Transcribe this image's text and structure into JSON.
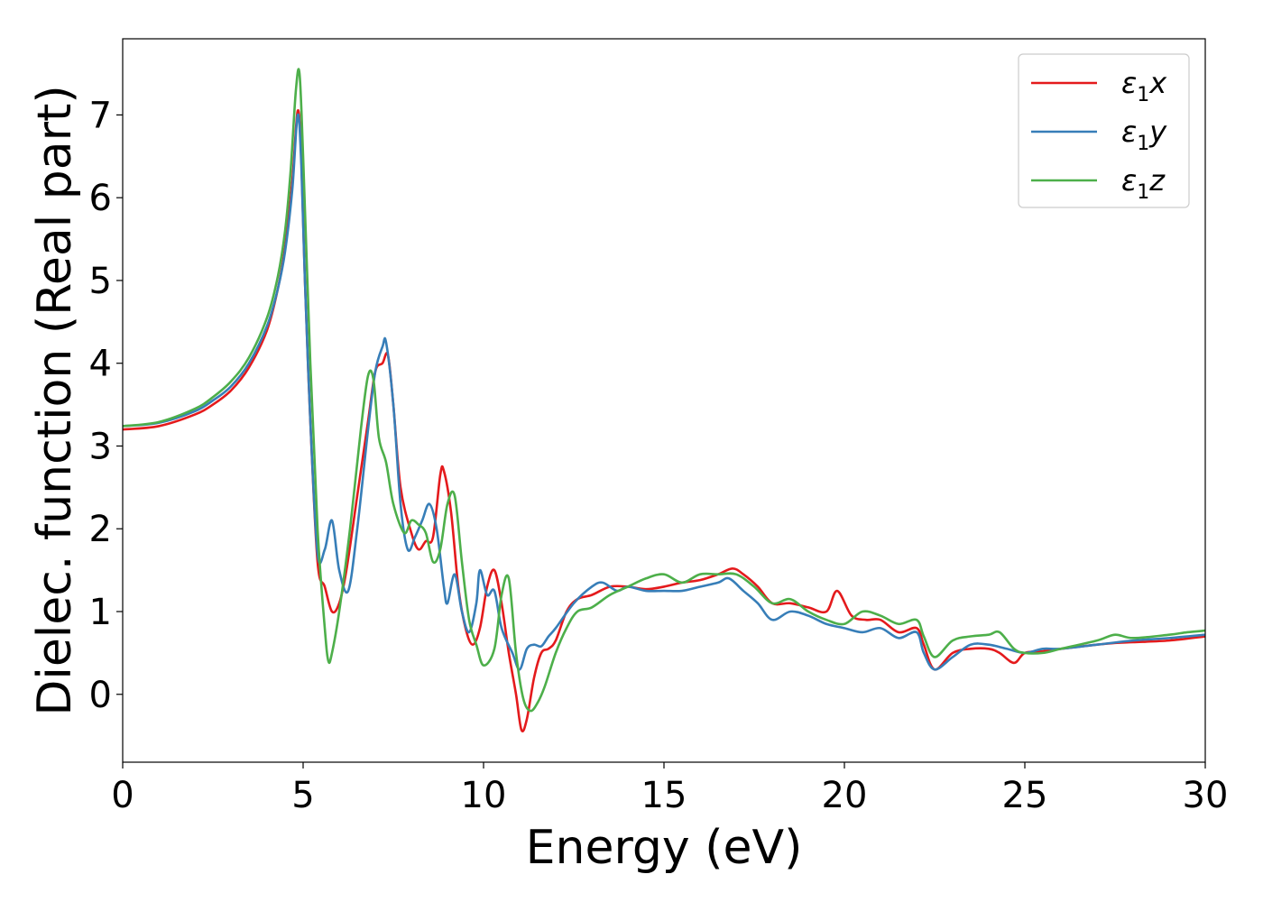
{
  "chart_data": {
    "type": "line",
    "xlabel": "Energy (eV)",
    "ylabel": "Dielec. function (Real part)",
    "xlim": [
      0,
      30
    ],
    "ylim": [
      -0.82,
      7.92
    ],
    "xticks": [
      0,
      5,
      10,
      15,
      20,
      25,
      30
    ],
    "yticks": [
      0,
      1,
      2,
      3,
      4,
      5,
      6,
      7
    ],
    "grid": false,
    "legend_position": "top-right",
    "series": [
      {
        "name": "ε₁x",
        "legend_main": "ε",
        "legend_sub": "1",
        "legend_suffix": "x",
        "color": "#e41a1c",
        "x": [
          0,
          1,
          2,
          2.5,
          3,
          3.5,
          4,
          4.3,
          4.5,
          4.7,
          4.85,
          4.95,
          5.05,
          5.2,
          5.4,
          5.6,
          5.8,
          6.0,
          6.2,
          6.5,
          6.8,
          7.0,
          7.2,
          7.35,
          7.5,
          7.7,
          8.0,
          8.2,
          8.4,
          8.6,
          8.8,
          8.9,
          9.1,
          9.3,
          9.5,
          9.7,
          9.9,
          10.1,
          10.3,
          10.5,
          10.7,
          10.9,
          11.05,
          11.2,
          11.4,
          11.6,
          11.8,
          12.0,
          12.3,
          12.6,
          13.0,
          13.5,
          14.0,
          14.5,
          15.0,
          15.5,
          16.0,
          16.5,
          16.9,
          17.2,
          17.6,
          18.0,
          18.5,
          19.0,
          19.5,
          19.8,
          20.2,
          20.6,
          21.0,
          21.5,
          22.0,
          22.2,
          22.5,
          23.0,
          23.5,
          24.0,
          24.3,
          24.7,
          25.0,
          25.5,
          26.0,
          27.0,
          27.5,
          28.0,
          29.0,
          30.0
        ],
        "y": [
          3.2,
          3.24,
          3.38,
          3.5,
          3.67,
          3.95,
          4.4,
          4.9,
          5.4,
          6.2,
          7.05,
          6.5,
          5.0,
          3.3,
          1.6,
          1.3,
          1.0,
          1.1,
          1.5,
          2.4,
          3.3,
          3.9,
          4.0,
          4.1,
          3.5,
          2.5,
          1.95,
          1.75,
          1.85,
          1.9,
          2.65,
          2.7,
          2.2,
          1.3,
          0.8,
          0.6,
          0.8,
          1.3,
          1.5,
          1.1,
          0.5,
          0.0,
          -0.43,
          -0.3,
          0.2,
          0.5,
          0.55,
          0.65,
          1.0,
          1.15,
          1.2,
          1.3,
          1.3,
          1.27,
          1.3,
          1.35,
          1.38,
          1.45,
          1.52,
          1.45,
          1.3,
          1.1,
          1.1,
          1.05,
          1.0,
          1.25,
          0.95,
          0.9,
          0.9,
          0.75,
          0.8,
          0.6,
          0.3,
          0.5,
          0.55,
          0.55,
          0.5,
          0.38,
          0.5,
          0.52,
          0.55,
          0.6,
          0.62,
          0.63,
          0.65,
          0.7
        ]
      },
      {
        "name": "ε₁y",
        "legend_main": "ε",
        "legend_sub": "1",
        "legend_suffix": "y",
        "color": "#377eb8",
        "x": [
          0,
          1,
          2,
          2.5,
          3,
          3.5,
          4,
          4.3,
          4.5,
          4.7,
          4.85,
          4.95,
          5.05,
          5.2,
          5.4,
          5.6,
          5.8,
          6.0,
          6.25,
          6.5,
          6.8,
          7.0,
          7.2,
          7.3,
          7.5,
          7.7,
          7.9,
          8.1,
          8.3,
          8.5,
          8.7,
          8.9,
          9.0,
          9.2,
          9.4,
          9.6,
          9.8,
          9.9,
          10.1,
          10.3,
          10.5,
          10.8,
          11.0,
          11.2,
          11.4,
          11.6,
          11.8,
          12.0,
          12.5,
          13.0,
          13.3,
          13.7,
          14.0,
          14.5,
          15.0,
          15.5,
          16.0,
          16.5,
          16.8,
          17.2,
          17.6,
          18.0,
          18.5,
          19.0,
          19.5,
          20.0,
          20.5,
          21.0,
          21.5,
          22.0,
          22.2,
          22.5,
          23.0,
          23.5,
          24.0,
          24.5,
          25.0,
          25.5,
          26.0,
          27.0,
          28.0,
          29.0,
          30.0
        ],
        "y": [
          3.24,
          3.28,
          3.42,
          3.55,
          3.72,
          4.0,
          4.45,
          4.9,
          5.35,
          6.1,
          7.0,
          6.4,
          5.0,
          3.3,
          1.7,
          1.75,
          2.1,
          1.5,
          1.25,
          2.0,
          3.2,
          3.9,
          4.2,
          4.25,
          3.5,
          2.3,
          1.75,
          1.9,
          2.1,
          2.3,
          2.0,
          1.3,
          1.1,
          1.45,
          1.0,
          0.75,
          1.1,
          1.5,
          1.2,
          1.25,
          0.8,
          0.5,
          0.3,
          0.55,
          0.6,
          0.58,
          0.7,
          0.8,
          1.1,
          1.3,
          1.35,
          1.25,
          1.3,
          1.25,
          1.25,
          1.25,
          1.3,
          1.35,
          1.4,
          1.25,
          1.1,
          0.9,
          1.0,
          0.95,
          0.85,
          0.8,
          0.75,
          0.8,
          0.68,
          0.75,
          0.5,
          0.3,
          0.45,
          0.6,
          0.6,
          0.55,
          0.5,
          0.55,
          0.55,
          0.6,
          0.65,
          0.68,
          0.72
        ]
      },
      {
        "name": "ε₁z",
        "legend_main": "ε",
        "legend_sub": "1",
        "legend_suffix": "z",
        "color": "#4daf4a",
        "x": [
          0,
          1,
          2,
          2.5,
          3,
          3.5,
          4,
          4.3,
          4.5,
          4.65,
          4.8,
          4.9,
          5.0,
          5.2,
          5.4,
          5.6,
          5.7,
          5.8,
          6.0,
          6.3,
          6.6,
          6.8,
          6.95,
          7.1,
          7.3,
          7.5,
          7.8,
          8.0,
          8.2,
          8.4,
          8.6,
          8.8,
          9.0,
          9.2,
          9.4,
          9.6,
          9.8,
          10.0,
          10.3,
          10.5,
          10.7,
          10.9,
          11.1,
          11.3,
          11.5,
          11.7,
          12.0,
          12.3,
          12.6,
          13.0,
          13.5,
          14.0,
          14.5,
          15.0,
          15.5,
          16.0,
          16.5,
          17.0,
          17.5,
          18.0,
          18.5,
          19.0,
          19.5,
          20.0,
          20.5,
          21.0,
          21.5,
          22.0,
          22.2,
          22.5,
          23.0,
          23.5,
          24.0,
          24.3,
          24.7,
          25.0,
          25.5,
          26.0,
          27.0,
          27.5,
          28.0,
          29.0,
          29.5,
          30.0
        ],
        "y": [
          3.24,
          3.29,
          3.45,
          3.59,
          3.78,
          4.07,
          4.55,
          5.05,
          5.6,
          6.3,
          7.3,
          7.5,
          6.5,
          4.0,
          2.0,
          0.8,
          0.4,
          0.5,
          1.0,
          2.0,
          3.2,
          3.85,
          3.8,
          3.1,
          2.8,
          2.3,
          1.95,
          2.1,
          2.05,
          1.95,
          1.6,
          1.75,
          2.3,
          2.4,
          1.6,
          0.9,
          0.6,
          0.35,
          0.55,
          1.2,
          1.4,
          0.5,
          -0.05,
          -0.2,
          -0.1,
          0.1,
          0.5,
          0.8,
          1.0,
          1.05,
          1.2,
          1.3,
          1.4,
          1.45,
          1.35,
          1.45,
          1.45,
          1.45,
          1.3,
          1.1,
          1.15,
          1.0,
          0.9,
          0.85,
          1.0,
          0.95,
          0.85,
          0.9,
          0.7,
          0.45,
          0.65,
          0.7,
          0.72,
          0.75,
          0.55,
          0.5,
          0.5,
          0.55,
          0.65,
          0.72,
          0.68,
          0.72,
          0.75,
          0.77
        ]
      }
    ]
  }
}
